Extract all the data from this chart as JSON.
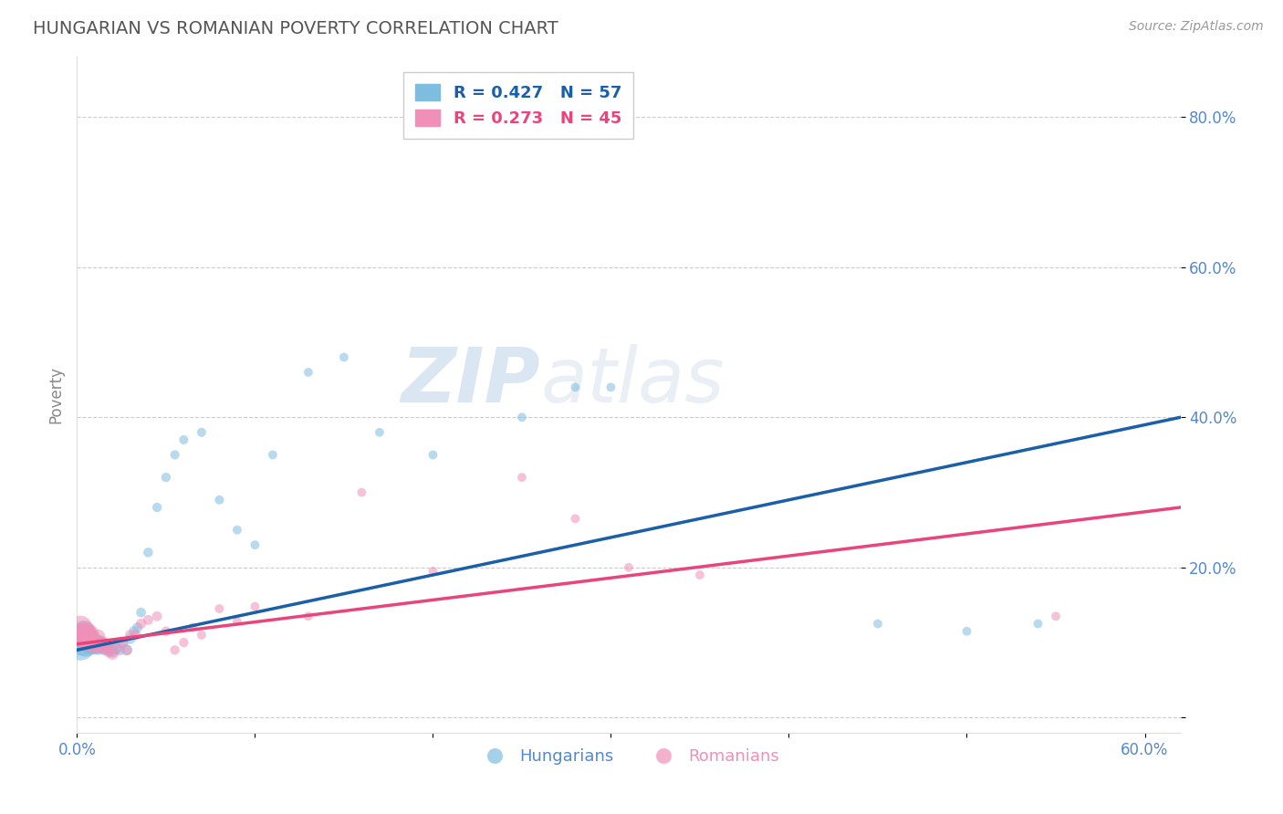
{
  "title": "HUNGARIAN VS ROMANIAN POVERTY CORRELATION CHART",
  "source": "Source: ZipAtlas.com",
  "ylabel": "Poverty",
  "xlim": [
    0.0,
    0.62
  ],
  "ylim": [
    -0.02,
    0.88
  ],
  "xticks": [
    0.0,
    0.1,
    0.2,
    0.3,
    0.4,
    0.5,
    0.6
  ],
  "xticklabels": [
    "0.0%",
    "",
    "",
    "",
    "",
    "",
    "60.0%"
  ],
  "yticks": [
    0.0,
    0.2,
    0.4,
    0.6,
    0.8
  ],
  "yticklabels": [
    "",
    "20.0%",
    "40.0%",
    "60.0%",
    "80.0%"
  ],
  "hungarian_color": "#7fbde0",
  "romanian_color": "#f090b8",
  "trendline_hungarian_color": "#1a5fa8",
  "trendline_romanian_color": "#e8457a",
  "legend_label_hungarian": "R = 0.427   N = 57",
  "legend_label_romanian": "R = 0.273   N = 45",
  "legend_label_h_short": "Hungarians",
  "legend_label_r_short": "Romanians",
  "background_color": "#ffffff",
  "grid_color": "#cccccc",
  "watermark_zip": "ZIP",
  "watermark_atlas": "atlas",
  "title_color": "#555555",
  "axis_label_color": "#888888",
  "tick_color": "#5588cc",
  "hungarian_x": [
    0.002,
    0.003,
    0.003,
    0.004,
    0.004,
    0.005,
    0.005,
    0.006,
    0.006,
    0.007,
    0.007,
    0.008,
    0.008,
    0.009,
    0.009,
    0.01,
    0.01,
    0.011,
    0.011,
    0.012,
    0.012,
    0.013,
    0.014,
    0.015,
    0.016,
    0.017,
    0.018,
    0.019,
    0.02,
    0.022,
    0.024,
    0.026,
    0.028,
    0.03,
    0.032,
    0.034,
    0.036,
    0.04,
    0.045,
    0.05,
    0.055,
    0.06,
    0.07,
    0.08,
    0.09,
    0.1,
    0.11,
    0.13,
    0.15,
    0.17,
    0.2,
    0.25,
    0.28,
    0.3,
    0.45,
    0.5,
    0.54
  ],
  "hungarian_y": [
    0.095,
    0.1,
    0.11,
    0.105,
    0.115,
    0.095,
    0.105,
    0.1,
    0.108,
    0.098,
    0.106,
    0.095,
    0.102,
    0.098,
    0.104,
    0.094,
    0.1,
    0.096,
    0.102,
    0.093,
    0.098,
    0.1,
    0.095,
    0.092,
    0.096,
    0.093,
    0.09,
    0.095,
    0.088,
    0.092,
    0.09,
    0.1,
    0.09,
    0.105,
    0.115,
    0.12,
    0.14,
    0.22,
    0.28,
    0.32,
    0.35,
    0.37,
    0.38,
    0.29,
    0.25,
    0.23,
    0.35,
    0.46,
    0.48,
    0.38,
    0.35,
    0.4,
    0.44,
    0.44,
    0.125,
    0.115,
    0.125
  ],
  "romanian_x": [
    0.002,
    0.003,
    0.004,
    0.004,
    0.005,
    0.006,
    0.006,
    0.007,
    0.008,
    0.008,
    0.009,
    0.01,
    0.011,
    0.012,
    0.013,
    0.014,
    0.015,
    0.016,
    0.017,
    0.018,
    0.02,
    0.022,
    0.025,
    0.028,
    0.03,
    0.033,
    0.036,
    0.04,
    0.045,
    0.05,
    0.055,
    0.06,
    0.065,
    0.07,
    0.08,
    0.09,
    0.1,
    0.13,
    0.16,
    0.2,
    0.25,
    0.28,
    0.31,
    0.35,
    0.55
  ],
  "romanian_y": [
    0.12,
    0.11,
    0.105,
    0.115,
    0.108,
    0.1,
    0.115,
    0.11,
    0.106,
    0.112,
    0.095,
    0.102,
    0.095,
    0.108,
    0.095,
    0.1,
    0.098,
    0.092,
    0.095,
    0.088,
    0.085,
    0.092,
    0.1,
    0.09,
    0.11,
    0.11,
    0.125,
    0.13,
    0.135,
    0.115,
    0.09,
    0.1,
    0.12,
    0.11,
    0.145,
    0.128,
    0.148,
    0.135,
    0.3,
    0.195,
    0.32,
    0.265,
    0.2,
    0.19,
    0.135
  ],
  "trendline_h_x0": 0.0,
  "trendline_h_y0": 0.09,
  "trendline_h_x1": 0.62,
  "trendline_h_y1": 0.4,
  "trendline_r_x0": 0.0,
  "trendline_r_y0": 0.098,
  "trendline_r_x1": 0.62,
  "trendline_r_y1": 0.28,
  "hungarian_sizes": [
    500,
    450,
    380,
    340,
    300,
    280,
    250,
    240,
    220,
    200,
    190,
    180,
    170,
    160,
    150,
    145,
    140,
    135,
    130,
    125,
    120,
    115,
    110,
    105,
    100,
    95,
    92,
    88,
    85,
    80,
    75,
    72,
    70,
    68,
    65,
    63,
    60,
    58,
    56,
    55,
    54,
    53,
    52,
    52,
    51,
    50,
    50,
    50,
    50,
    50,
    50,
    50,
    50,
    50,
    50,
    50,
    50
  ],
  "romanian_sizes": [
    350,
    300,
    260,
    240,
    220,
    200,
    185,
    170,
    160,
    150,
    140,
    130,
    125,
    120,
    115,
    110,
    105,
    100,
    95,
    92,
    88,
    85,
    80,
    75,
    70,
    68,
    65,
    63,
    60,
    58,
    56,
    55,
    53,
    52,
    51,
    50,
    50,
    50,
    50,
    50,
    50,
    50,
    50,
    50,
    50
  ]
}
